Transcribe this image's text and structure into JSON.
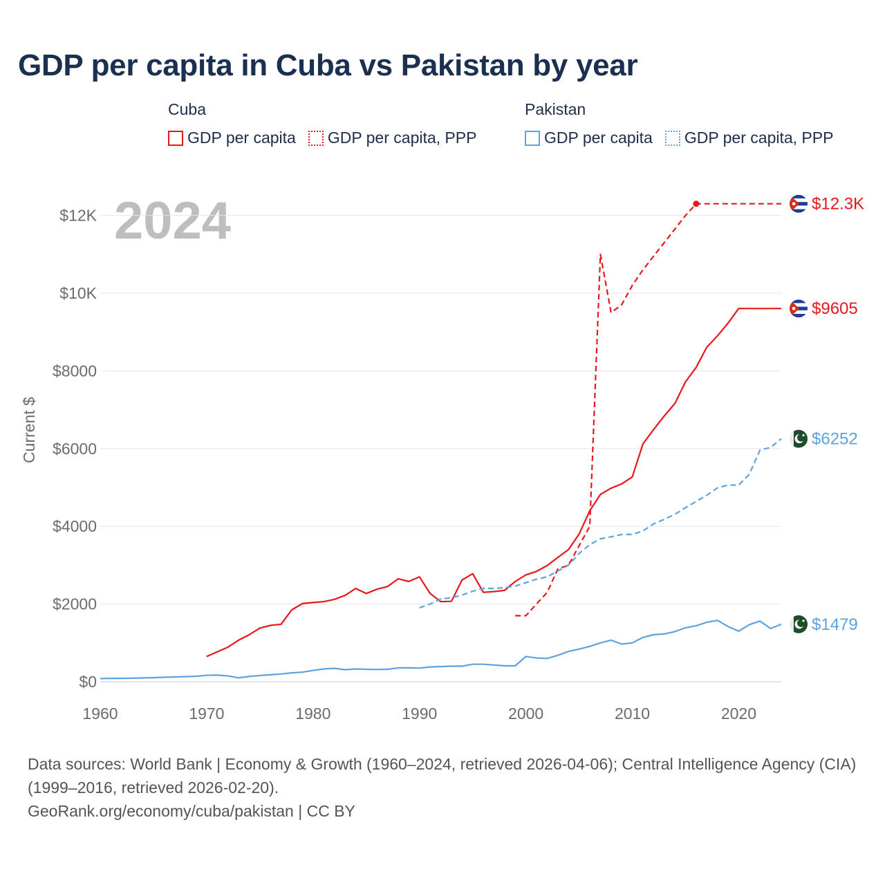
{
  "title": "GDP per capita in Cuba vs Pakistan by year",
  "legend": {
    "groups": [
      {
        "name": "Cuba",
        "items": [
          {
            "label": "GDP per capita",
            "style": "solid",
            "color": "#e8161b"
          },
          {
            "label": "GDP per capita, PPP",
            "style": "dotted",
            "color": "#e8161b"
          }
        ]
      },
      {
        "name": "Pakistan",
        "items": [
          {
            "label": "GDP per capita",
            "style": "solid",
            "color": "#5ca2e1"
          },
          {
            "label": "GDP per capita, PPP",
            "style": "dotted",
            "color": "#5ca2e1"
          }
        ]
      }
    ]
  },
  "sources": {
    "line1": "Data sources: World Bank | Economy & Growth (1960–2024, retrieved 2026-04-06); Central Intelligence Agency (CIA) (1999–2016, retrieved 2026-02-20).",
    "line2": "GeoRank.org/economy/cuba/pakistan | CC BY"
  },
  "chart_data": {
    "type": "line",
    "year_label": "2024",
    "ylabel": "Current $",
    "xlim": [
      1960,
      2024
    ],
    "ylim": [
      0,
      12800
    ],
    "x_ticks": [
      1960,
      1970,
      1980,
      1990,
      2000,
      2010,
      2020
    ],
    "y_ticks": [
      {
        "value": 0,
        "label": "$0"
      },
      {
        "value": 2000,
        "label": "$2000"
      },
      {
        "value": 4000,
        "label": "$4000"
      },
      {
        "value": 6000,
        "label": "$6000"
      },
      {
        "value": 8000,
        "label": "$8000"
      },
      {
        "value": 10000,
        "label": "$10K"
      },
      {
        "value": 12000,
        "label": "$12K"
      }
    ],
    "series": [
      {
        "name": "Cuba GDP per capita",
        "country": "Cuba",
        "color": "#e8161b",
        "dash": "solid",
        "end_label": "$9605",
        "flag": "cuba-flag",
        "x": [
          1970,
          1971,
          1972,
          1973,
          1974,
          1975,
          1976,
          1977,
          1978,
          1979,
          1980,
          1981,
          1982,
          1983,
          1984,
          1985,
          1986,
          1987,
          1988,
          1989,
          1990,
          1991,
          1992,
          1993,
          1994,
          1995,
          1996,
          1997,
          1998,
          1999,
          2000,
          2001,
          2002,
          2003,
          2004,
          2005,
          2006,
          2007,
          2008,
          2009,
          2010,
          2011,
          2012,
          2013,
          2014,
          2015,
          2016,
          2017,
          2018,
          2019,
          2020,
          2024
        ],
        "values": [
          650,
          770,
          890,
          1070,
          1210,
          1380,
          1450,
          1480,
          1850,
          2010,
          2040,
          2060,
          2120,
          2220,
          2400,
          2270,
          2380,
          2450,
          2650,
          2580,
          2700,
          2270,
          2060,
          2070,
          2620,
          2780,
          2300,
          2320,
          2350,
          2580,
          2750,
          2840,
          2990,
          3200,
          3400,
          3800,
          4400,
          4820,
          4980,
          5090,
          5270,
          6120,
          6490,
          6840,
          7160,
          7720,
          8090,
          8610,
          8900,
          9230,
          9605,
          9605
        ]
      },
      {
        "name": "Cuba GDP per capita, PPP",
        "country": "Cuba",
        "color": "#e8161b",
        "dash": "dashed",
        "end_label": "$12.3K",
        "flag": "cuba-flag",
        "x": [
          1999,
          2000,
          2001,
          2002,
          2003,
          2004,
          2005,
          2006,
          2007,
          2008,
          2009,
          2010,
          2011,
          2012,
          2013,
          2014,
          2015,
          2016,
          2024
        ],
        "values": [
          1700,
          1700,
          2000,
          2300,
          2900,
          3000,
          3500,
          4000,
          11000,
          9500,
          9700,
          10200,
          10600,
          10950,
          11300,
          11650,
          12000,
          12300,
          12300
        ]
      },
      {
        "name": "Pakistan GDP per capita",
        "country": "Pakistan",
        "color": "#5ca2e1",
        "dash": "solid",
        "end_label": "$1479",
        "flag": "pakistan-flag",
        "x": [
          1960,
          1961,
          1962,
          1963,
          1964,
          1965,
          1966,
          1967,
          1968,
          1969,
          1970,
          1971,
          1972,
          1973,
          1974,
          1975,
          1976,
          1977,
          1978,
          1979,
          1980,
          1981,
          1982,
          1983,
          1984,
          1985,
          1986,
          1987,
          1988,
          1989,
          1990,
          1991,
          1992,
          1993,
          1994,
          1995,
          1996,
          1997,
          1998,
          1999,
          2000,
          2001,
          2002,
          2003,
          2004,
          2005,
          2006,
          2007,
          2008,
          2009,
          2010,
          2011,
          2012,
          2013,
          2014,
          2015,
          2016,
          2017,
          2018,
          2019,
          2020,
          2021,
          2022,
          2023,
          2024
        ],
        "values": [
          82,
          85,
          88,
          91,
          97,
          105,
          115,
          123,
          132,
          140,
          165,
          170,
          150,
          100,
          135,
          160,
          180,
          200,
          230,
          245,
          290,
          330,
          345,
          310,
          330,
          320,
          315,
          320,
          355,
          360,
          350,
          380,
          390,
          400,
          400,
          450,
          450,
          430,
          410,
          410,
          650,
          610,
          600,
          680,
          780,
          840,
          910,
          1000,
          1070,
          970,
          1000,
          1140,
          1210,
          1230,
          1290,
          1390,
          1440,
          1530,
          1580,
          1420,
          1300,
          1470,
          1560,
          1370,
          1479
        ]
      },
      {
        "name": "Pakistan GDP per capita, PPP",
        "country": "Pakistan",
        "color": "#5ca2e1",
        "dash": "dashed",
        "end_label": "$6252",
        "flag": "pakistan-flag",
        "x": [
          1990,
          1991,
          1992,
          1993,
          1994,
          1995,
          1996,
          1997,
          1998,
          1999,
          2000,
          2001,
          2002,
          2003,
          2004,
          2005,
          2006,
          2007,
          2008,
          2009,
          2010,
          2011,
          2012,
          2013,
          2014,
          2015,
          2016,
          2017,
          2018,
          2019,
          2020,
          2021,
          2022,
          2023,
          2024
        ],
        "values": [
          1900,
          2000,
          2130,
          2160,
          2230,
          2330,
          2400,
          2400,
          2420,
          2460,
          2550,
          2640,
          2700,
          2850,
          3000,
          3300,
          3530,
          3680,
          3730,
          3790,
          3790,
          3880,
          4060,
          4180,
          4310,
          4480,
          4640,
          4800,
          4990,
          5060,
          5060,
          5340,
          5960,
          6030,
          6252
        ]
      }
    ]
  }
}
